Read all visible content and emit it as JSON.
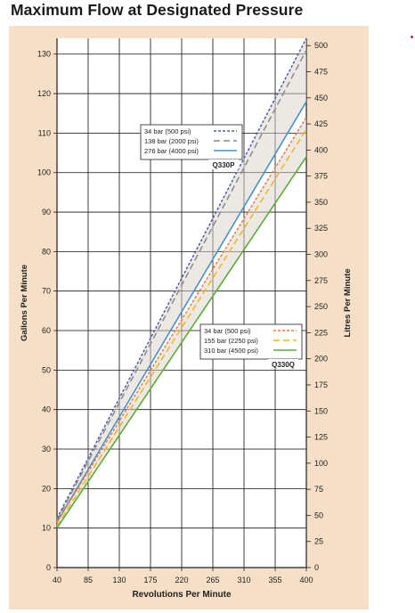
{
  "title": "Maximum Flow at Designated Pressure",
  "colors": {
    "panel_bg": "#f5dfc6",
    "plot_bg": "#ffffff",
    "grid": "#231f20",
    "band_fill": "#e6e2dc",
    "accent_dot": "#d7263d",
    "p_34": "#4f5fa8",
    "p_138": "#8a8a8a",
    "p_276": "#4a90c9",
    "q_34": "#f07a3c",
    "q_155": "#f7b21b",
    "q_310": "#5aac3a"
  },
  "chart_data": {
    "type": "line",
    "xlabel": "Revolutions Per Minute",
    "ylabel": "Gallons Per Minute",
    "y2label": "Litres Per Minute",
    "xlim": [
      40,
      400
    ],
    "ylim": [
      0,
      134
    ],
    "y2lim": [
      0,
      507
    ],
    "x_ticks": [
      "40",
      "85",
      "130",
      "175",
      "220",
      "265",
      "310",
      "355",
      "400"
    ],
    "y_ticks": [
      "0",
      "10",
      "20",
      "30",
      "40",
      "50",
      "60",
      "70",
      "80",
      "90",
      "100",
      "110",
      "120",
      "130"
    ],
    "y2_ticks": [
      "0",
      "25",
      "50",
      "75",
      "100",
      "125",
      "150",
      "175",
      "200",
      "225",
      "250",
      "275",
      "300",
      "325",
      "350",
      "375",
      "400",
      "425",
      "450",
      "475",
      "500"
    ],
    "grid": true,
    "groups": [
      {
        "label": "Q330P",
        "legend_position": "upper-left",
        "series": [
          {
            "name": "34 bar (500 psi)",
            "style": "dotted",
            "color_key": "p_34",
            "x": [
              40,
              400
            ],
            "y": [
              12.5,
              134
            ]
          },
          {
            "name": "138 bar (2000 psi)",
            "style": "dashed",
            "color_key": "p_138",
            "x": [
              40,
              400
            ],
            "y": [
              12.0,
              131
            ]
          },
          {
            "name": "276 bar (4000 psi)",
            "style": "solid",
            "color_key": "p_276",
            "x": [
              40,
              400
            ],
            "y": [
              11.5,
              118
            ]
          }
        ]
      },
      {
        "label": "Q330Q",
        "legend_position": "center-right",
        "series": [
          {
            "name": "34 bar (500 psi)",
            "style": "dotted",
            "color_key": "q_34",
            "x": [
              40,
              400
            ],
            "y": [
              11.5,
              114
            ]
          },
          {
            "name": "155 bar (2250 psi)",
            "style": "dashed",
            "color_key": "q_155",
            "x": [
              40,
              400
            ],
            "y": [
              10.5,
              111
            ]
          },
          {
            "name": "310 bar (4500 psi)",
            "style": "solid",
            "color_key": "q_310",
            "x": [
              40,
              400
            ],
            "y": [
              10.0,
              104
            ]
          }
        ]
      }
    ]
  }
}
